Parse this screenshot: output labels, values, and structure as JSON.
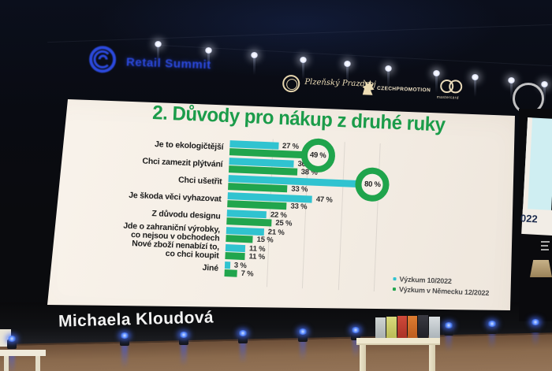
{
  "scene": {
    "conference_logo": "Retail Summit",
    "speaker_name": "Michaela Kloudová",
    "side_screen_fragment": "022",
    "sponsors": [
      {
        "name": "Plzeňský Prazdroj"
      },
      {
        "name": "CZECHPROMOTION"
      },
      {
        "name": "mastercard"
      }
    ]
  },
  "slide": {
    "title": "2. Důvody pro nákup z druhé ruky",
    "title_color": "#1b9c4a",
    "background_color": "#f5efe7"
  },
  "chart_data": {
    "type": "bar",
    "orientation": "horizontal",
    "title": "2. Důvody pro nákup z druhé ruky",
    "categories": [
      "Je to ekologičtější",
      "Chci zamezit plýtvání",
      "Chci ušetřit",
      "Je škoda věci vyhazovat",
      "Z důvodu designu",
      "Jde o zahraniční výrobky,\nco nejsou v obchodech",
      "Nové zboží nenabízí to,\nco chci koupit",
      "Jiné"
    ],
    "series": [
      {
        "name": "Výzkum 10/2022",
        "color": "#30c3d0",
        "values": [
          27,
          36,
          80,
          47,
          22,
          21,
          11,
          3
        ]
      },
      {
        "name": "Výzkum v Německu 12/2022",
        "color": "#21a54d",
        "values": [
          49,
          38,
          33,
          33,
          25,
          15,
          11,
          7
        ]
      }
    ],
    "value_suffix": " %",
    "xlim": [
      0,
      88
    ],
    "x_ticks": [
      0,
      20,
      40,
      60,
      80
    ],
    "grid": true,
    "legend_position": "bottom-right",
    "highlights": [
      {
        "series_index": 1,
        "category_index": 0,
        "ring_color": "#1fa44c"
      },
      {
        "series_index": 0,
        "category_index": 2,
        "ring_color": "#1fa44c"
      }
    ]
  }
}
